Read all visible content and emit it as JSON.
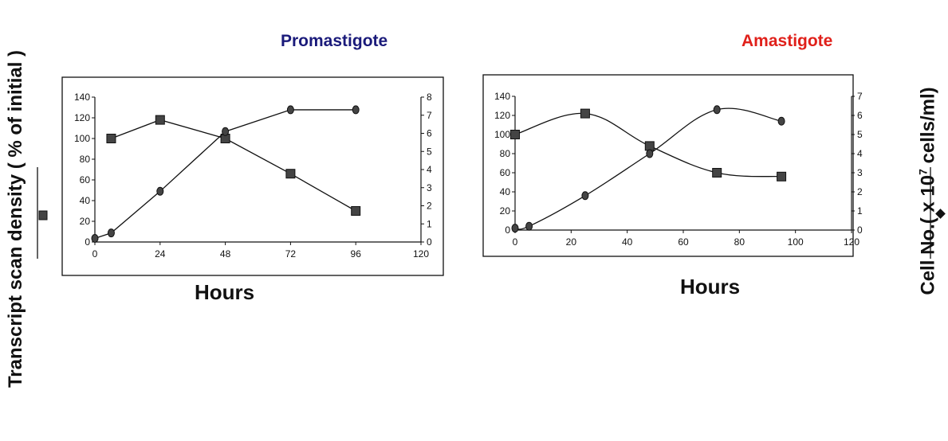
{
  "y_left_label": "Transcript scan density ( % of initial )",
  "y_right_label": "Cell No.( x 10",
  "y_right_label_sup": "7",
  "y_right_label_end": " cells/ml)",
  "colors": {
    "promastigote_title": "#1a1a7a",
    "amastigote_title": "#e0201a",
    "ink": "#111111",
    "marker": "#444444"
  },
  "chart_data": [
    {
      "type": "line",
      "title": "Promastigote",
      "xlabel": "Hours",
      "x_ticks": [
        0,
        24,
        48,
        72,
        96,
        120
      ],
      "xlim": [
        0,
        120
      ],
      "ylim_left": [
        0,
        140
      ],
      "y_left_ticks": [
        0,
        20,
        40,
        60,
        80,
        100,
        120,
        140
      ],
      "ylim_right": [
        0,
        8
      ],
      "y_right_ticks": [
        0,
        1,
        2,
        3,
        4,
        5,
        6,
        7,
        8
      ],
      "series": [
        {
          "axis": "left",
          "marker": "square",
          "x": [
            6,
            24,
            48,
            72,
            96
          ],
          "y": [
            100,
            118,
            100,
            66,
            30
          ]
        },
        {
          "axis": "right",
          "marker": "circle",
          "x": [
            0,
            6,
            24,
            48,
            72,
            96
          ],
          "y": [
            0.2,
            0.5,
            2.8,
            6.1,
            7.3,
            7.3
          ]
        }
      ]
    },
    {
      "type": "line",
      "title": "Amastigote",
      "xlabel": "Hours",
      "x_ticks": [
        0,
        20,
        40,
        60,
        80,
        100,
        120
      ],
      "xlim": [
        0,
        120
      ],
      "ylim_left": [
        0,
        140
      ],
      "y_left_ticks": [
        0,
        20,
        40,
        60,
        80,
        100,
        120,
        140
      ],
      "ylim_right": [
        0,
        7
      ],
      "y_right_ticks": [
        0,
        1,
        2,
        3,
        4,
        5,
        6,
        7
      ],
      "series": [
        {
          "axis": "left",
          "marker": "square",
          "x": [
            0,
            25,
            48,
            72,
            95
          ],
          "y": [
            100,
            122,
            88,
            60,
            56
          ]
        },
        {
          "axis": "right",
          "marker": "circle",
          "x": [
            0,
            5,
            25,
            48,
            72,
            95
          ],
          "y": [
            0.1,
            0.2,
            1.8,
            4.0,
            6.3,
            5.7
          ]
        }
      ]
    }
  ]
}
